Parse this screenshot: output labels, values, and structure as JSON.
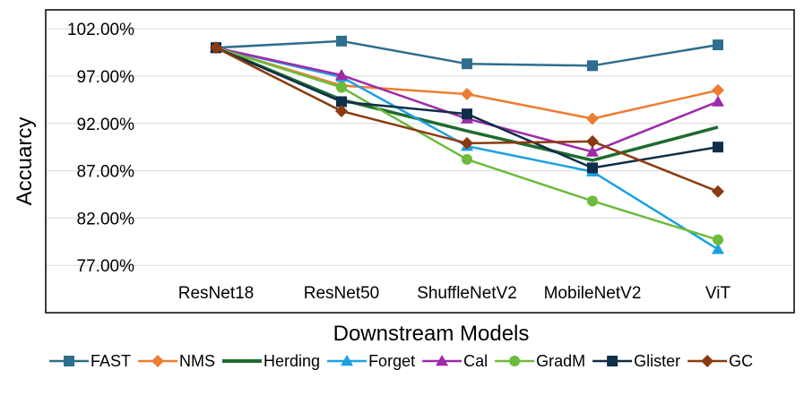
{
  "chart_data": {
    "type": "line",
    "title": "",
    "xlabel": "Downstream Models",
    "ylabel": "Accuarcy",
    "categories": [
      "ResNet18",
      "ResNet50",
      "ShuffleNetV2",
      "MobileNetV2",
      "ViT"
    ],
    "ylim": [
      72.0,
      104.0
    ],
    "yticks": [
      77.0,
      82.0,
      87.0,
      92.0,
      97.0,
      102.0
    ],
    "ytick_labels": [
      "77.00%",
      "82.00%",
      "87.00%",
      "92.00%",
      "97.00%",
      "102.00%"
    ],
    "grid": true,
    "legend_position": "bottom",
    "series": [
      {
        "name": "FAST",
        "color": "#2E6E8E",
        "marker": "square",
        "values": [
          100.0,
          100.7,
          98.3,
          98.1,
          100.3
        ]
      },
      {
        "name": "NMS",
        "color": "#ED7D31",
        "marker": "diamond",
        "values": [
          100.0,
          96.0,
          95.1,
          92.5,
          95.5
        ]
      },
      {
        "name": "Herding",
        "color": "#1E6B2E",
        "marker": "none",
        "values": [
          100.0,
          94.5,
          91.2,
          88.1,
          91.6
        ]
      },
      {
        "name": "Forget",
        "color": "#1BA1E2",
        "marker": "triangle",
        "values": [
          100.0,
          96.9,
          89.6,
          86.9,
          78.7
        ]
      },
      {
        "name": "Cal",
        "color": "#9E2AA8",
        "marker": "triangle",
        "values": [
          100.0,
          97.1,
          92.5,
          89.0,
          94.3
        ]
      },
      {
        "name": "GradM",
        "color": "#6CBB3C",
        "marker": "circle",
        "values": [
          100.0,
          95.8,
          88.2,
          83.8,
          79.7
        ]
      },
      {
        "name": "Glister",
        "color": "#0F2E4A",
        "marker": "square",
        "values": [
          100.0,
          94.3,
          93.0,
          87.3,
          89.5
        ]
      },
      {
        "name": "GC",
        "color": "#8B3A10",
        "marker": "diamond",
        "values": [
          100.0,
          93.3,
          89.9,
          90.1,
          84.8
        ]
      }
    ]
  }
}
